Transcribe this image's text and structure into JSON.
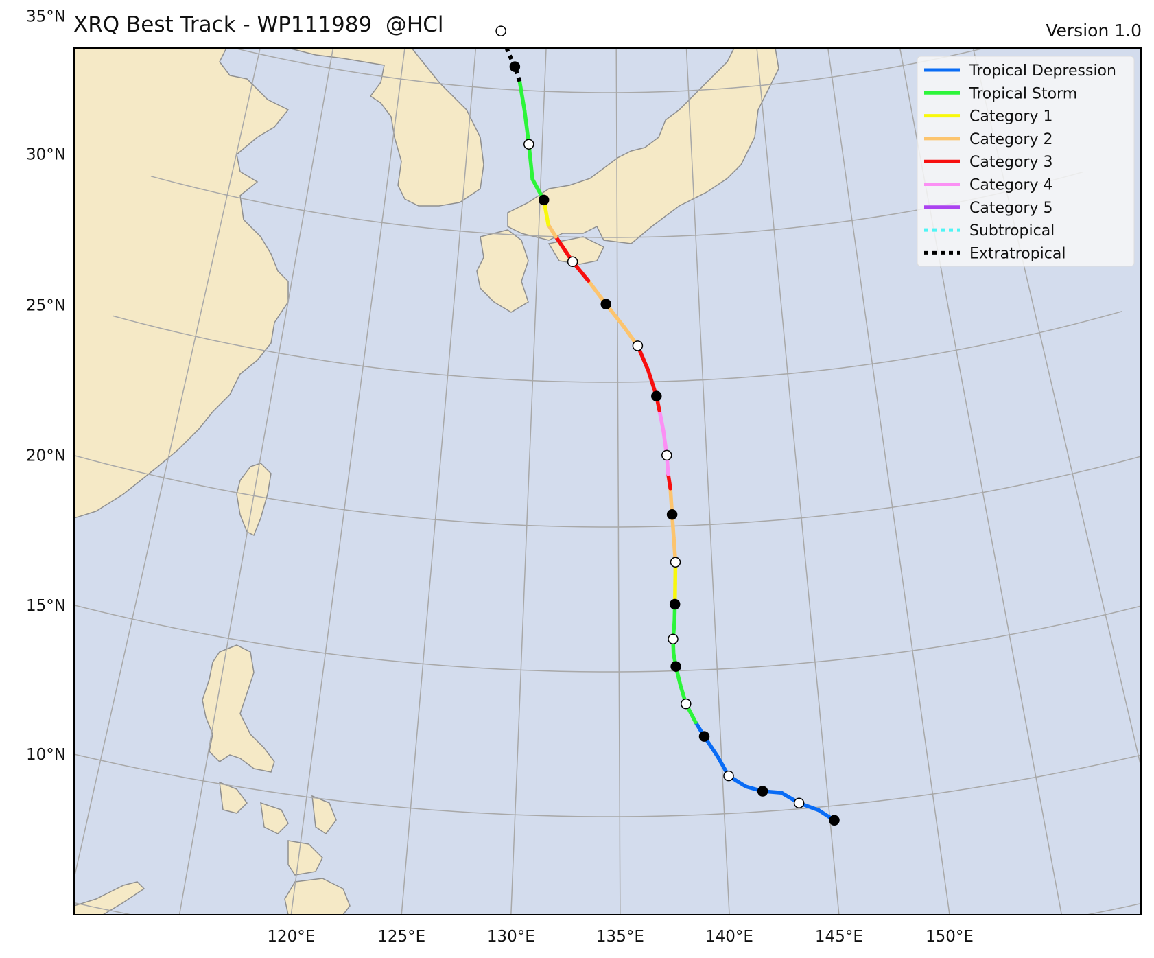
{
  "title": "XRQ Best Track - WP111989  @HCl",
  "version": "Version 1.0",
  "colors": {
    "ocean": "#d3dced",
    "land": "#f5e9c6",
    "coast": "#8f8f8f",
    "grid": "#a8a8a8"
  },
  "axes": {
    "lon_ticks": [
      "120°E",
      "125°E",
      "130°E",
      "135°E",
      "140°E",
      "145°E",
      "150°E"
    ],
    "lat_ticks": [
      "10°N",
      "15°N",
      "20°N",
      "25°N",
      "30°N",
      "35°N"
    ]
  },
  "legend": {
    "placement": "top-right",
    "items": [
      {
        "label": "Tropical Depression",
        "color": "#0a6cf5",
        "style": "solid"
      },
      {
        "label": "Tropical Storm",
        "color": "#2df53a",
        "style": "solid"
      },
      {
        "label": "Category 1",
        "color": "#f8f80c",
        "style": "solid"
      },
      {
        "label": "Category 2",
        "color": "#fcc46e",
        "style": "solid"
      },
      {
        "label": "Category 3",
        "color": "#f70f0f",
        "style": "solid"
      },
      {
        "label": "Category 4",
        "color": "#fb90f4",
        "style": "solid"
      },
      {
        "label": "Category 5",
        "color": "#ab43f0",
        "style": "solid"
      },
      {
        "label": "Subtropical",
        "color": "#4ef5f5",
        "style": "dotted"
      },
      {
        "label": "Extratropical",
        "color": "#000000",
        "style": "dotted"
      }
    ]
  },
  "track": [
    {
      "lon": 145.2,
      "lat": 9.5,
      "cat": "TD",
      "marker": "filled"
    },
    {
      "lon": 144.5,
      "lat": 9.9,
      "cat": "TD"
    },
    {
      "lon": 143.6,
      "lat": 10.2,
      "cat": "TD",
      "marker": "open"
    },
    {
      "lon": 142.8,
      "lat": 10.6,
      "cat": "TD"
    },
    {
      "lon": 141.9,
      "lat": 10.7,
      "cat": "TD",
      "marker": "filled"
    },
    {
      "lon": 141.1,
      "lat": 10.9,
      "cat": "TD"
    },
    {
      "lon": 140.3,
      "lat": 11.3,
      "cat": "TD",
      "marker": "open"
    },
    {
      "lon": 139.8,
      "lat": 12.0,
      "cat": "TD"
    },
    {
      "lon": 139.2,
      "lat": 12.7,
      "cat": "TD",
      "marker": "filled"
    },
    {
      "lon": 138.8,
      "lat": 13.2,
      "cat": "TD"
    },
    {
      "lon": 138.35,
      "lat": 13.85,
      "cat": "TS",
      "marker": "open"
    },
    {
      "lon": 138.1,
      "lat": 14.5,
      "cat": "TS"
    },
    {
      "lon": 137.9,
      "lat": 15.15,
      "cat": "TS",
      "marker": "filled"
    },
    {
      "lon": 137.8,
      "lat": 15.6,
      "cat": "TS"
    },
    {
      "lon": 137.8,
      "lat": 16.1,
      "cat": "TS",
      "marker": "open"
    },
    {
      "lon": 137.9,
      "lat": 16.7,
      "cat": "TS"
    },
    {
      "lon": 137.95,
      "lat": 17.3,
      "cat": "TS",
      "marker": "filled"
    },
    {
      "lon": 138.0,
      "lat": 18.0,
      "cat": "C1"
    },
    {
      "lon": 138.05,
      "lat": 18.75,
      "cat": "C1",
      "marker": "open"
    },
    {
      "lon": 138.0,
      "lat": 19.6,
      "cat": "C2"
    },
    {
      "lon": 137.95,
      "lat": 20.4,
      "cat": "C2",
      "marker": "filled"
    },
    {
      "lon": 137.9,
      "lat": 21.3,
      "cat": "C2"
    },
    {
      "lon": 137.8,
      "lat": 21.8,
      "cat": "C3"
    },
    {
      "lon": 137.75,
      "lat": 22.45,
      "cat": "C4",
      "marker": "open"
    },
    {
      "lon": 137.6,
      "lat": 23.3,
      "cat": "C4"
    },
    {
      "lon": 137.4,
      "lat": 24.0,
      "cat": "C4"
    },
    {
      "lon": 137.25,
      "lat": 24.5,
      "cat": "C3",
      "marker": "filled"
    },
    {
      "lon": 136.8,
      "lat": 25.4,
      "cat": "C3"
    },
    {
      "lon": 136.2,
      "lat": 26.25,
      "cat": "C3",
      "marker": "open"
    },
    {
      "lon": 135.4,
      "lat": 26.9,
      "cat": "C2"
    },
    {
      "lon": 134.3,
      "lat": 27.7,
      "cat": "C2",
      "marker": "filled"
    },
    {
      "lon": 133.2,
      "lat": 28.5,
      "cat": "C2"
    },
    {
      "lon": 132.2,
      "lat": 29.15,
      "cat": "C3",
      "marker": "open"
    },
    {
      "lon": 131.1,
      "lat": 30.0,
      "cat": "C3"
    },
    {
      "lon": 130.6,
      "lat": 30.4,
      "cat": "C2"
    },
    {
      "lon": 130.25,
      "lat": 31.25,
      "cat": "C1",
      "marker": "filled"
    },
    {
      "lon": 129.45,
      "lat": 31.95,
      "cat": "TS"
    },
    {
      "lon": 129.1,
      "lat": 33.15,
      "cat": "TS",
      "marker": "open"
    },
    {
      "lon": 128.7,
      "lat": 34.3,
      "cat": "TS"
    },
    {
      "lon": 128.25,
      "lat": 35.3,
      "cat": "TS"
    },
    {
      "lon": 127.85,
      "lat": 35.8,
      "cat": "EX",
      "marker": "filled"
    },
    {
      "lon": 127.3,
      "lat": 36.3,
      "cat": "EX"
    },
    {
      "lon": 126.7,
      "lat": 37.0,
      "cat": "EX",
      "marker": "open"
    }
  ]
}
